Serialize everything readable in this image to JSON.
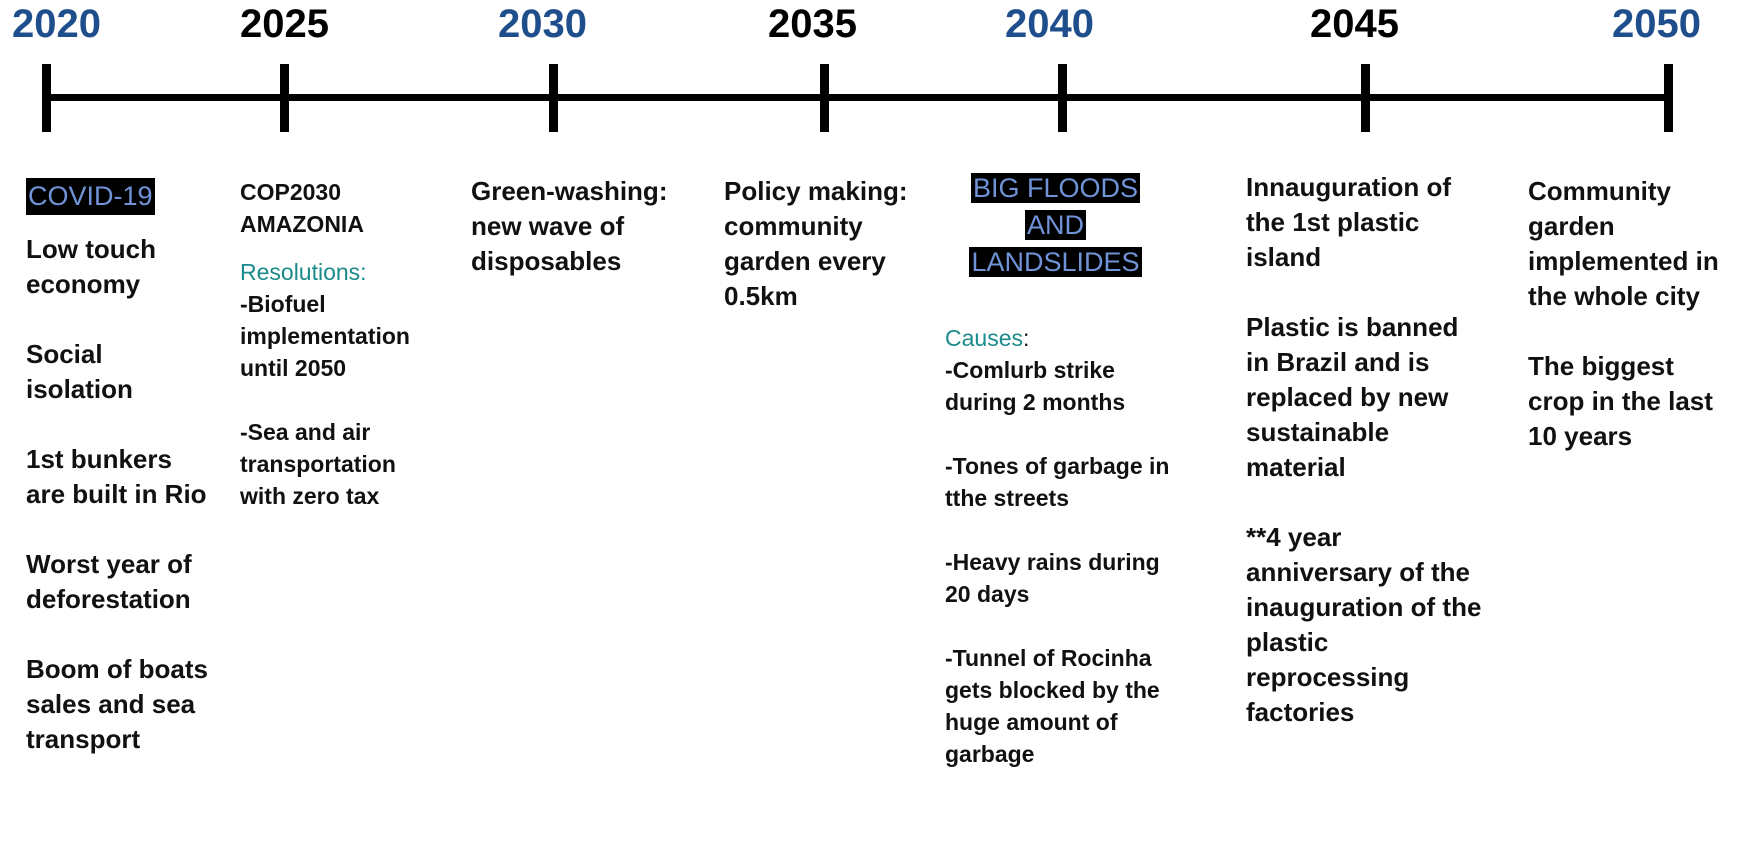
{
  "timeline": {
    "years": [
      "2020",
      "2025",
      "2030",
      "2035",
      "2040",
      "2045",
      "2050"
    ]
  },
  "col2020": {
    "tag": "COVID-19",
    "items": [
      "Low touch economy",
      "Social isolation",
      "1st bunkers are built in Rio",
      "Worst year of deforestation",
      "Boom of boats sales and sea transport"
    ]
  },
  "col2025": {
    "title": "COP2030\nAMAZONIA",
    "resolutions_label": "Resolutions:",
    "items": [
      "-Biofuel implementation until 2050",
      "-Sea and air transportation with zero tax"
    ]
  },
  "col2030": {
    "text": "Green-washing: new wave of disposables"
  },
  "col2035": {
    "text": "Policy making: community garden every 0.5km"
  },
  "col2040": {
    "tag_lines": [
      "BIG FLOODS",
      "AND",
      "LANDSLIDES"
    ],
    "causes_label": "Causes",
    "causes_colon": ":",
    "items": [
      "-Comlurb strike during 2 months",
      "-Tones of garbage in tthe streets",
      "-Heavy rains during 20 days",
      "-Tunnel of Rocinha gets blocked by the huge amount of garbage"
    ]
  },
  "col2045": {
    "items": [
      "Innauguration of the 1st plastic island",
      "Plastic is banned in Brazil and is replaced by new sustainable material",
      "**4 year anniversary of the inauguration of the plastic reprocessing factories"
    ]
  },
  "col2050": {
    "items": [
      "Community garden implemented in the whole city",
      "The biggest crop in the last 10 years"
    ]
  },
  "colors": {
    "year_blue": "#1f4e8c",
    "highlight_text": "#6f93d6",
    "teal": "#1a8a8a"
  }
}
